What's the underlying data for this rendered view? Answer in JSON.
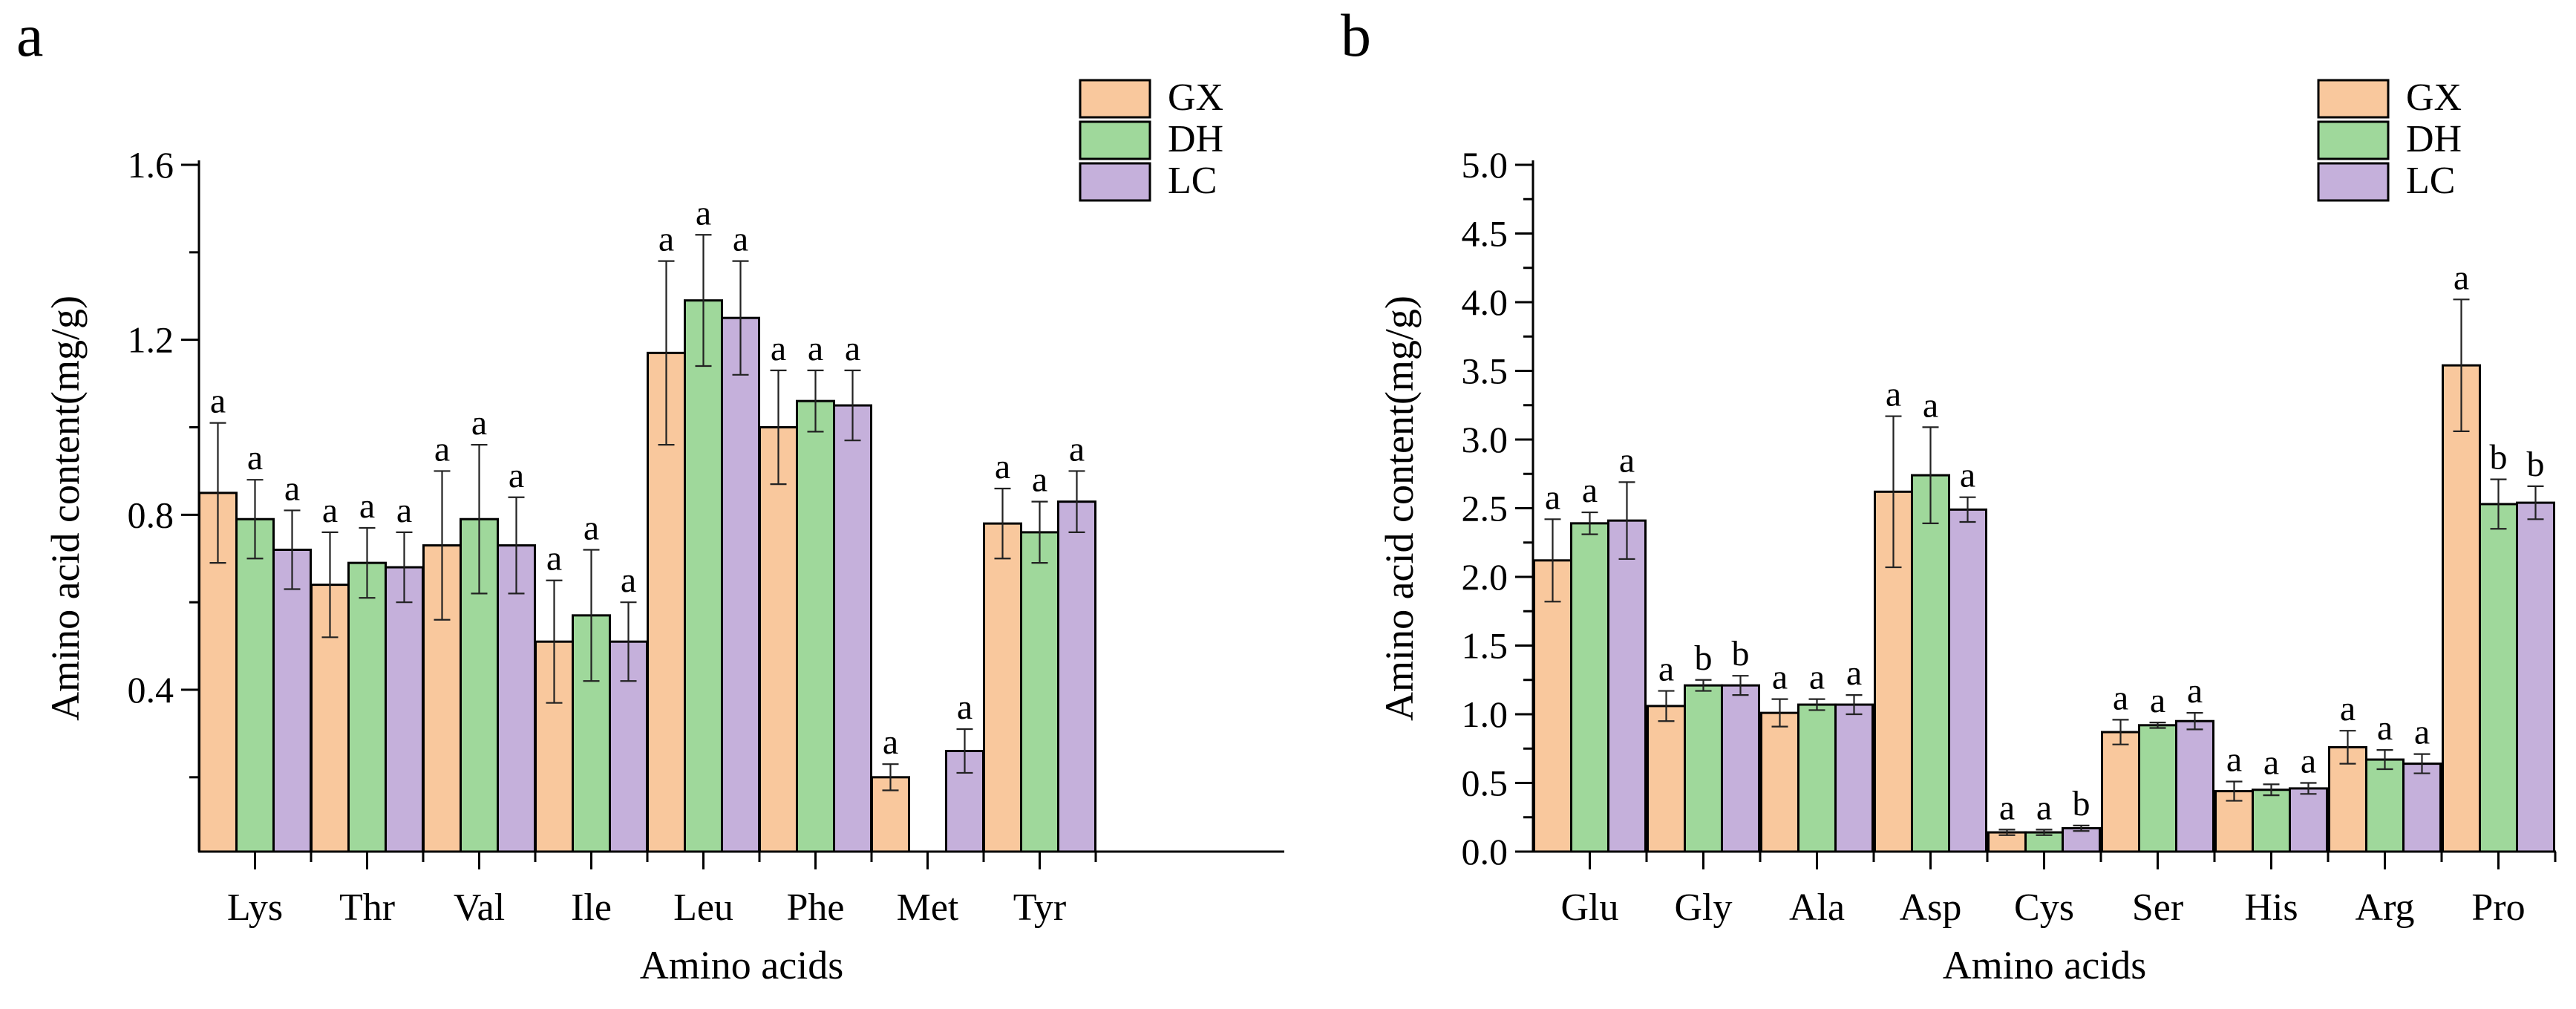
{
  "colors": {
    "GX": "#F9C89D",
    "DH": "#9FD89B",
    "LC": "#C5B0DB"
  },
  "chart_data": [
    {
      "panel_label": "a",
      "type": "bar",
      "xlabel": "Amino acids",
      "ylabel": "Amino acid content(mg/g)",
      "ylim": [
        0.03,
        1.6
      ],
      "yticks": [
        {
          "value": 0.4,
          "label": "0.4"
        },
        {
          "value": 0.8,
          "label": "0.8"
        },
        {
          "value": 1.2,
          "label": "1.2"
        },
        {
          "value": 1.6,
          "label": "1.6"
        }
      ],
      "categories": [
        "Lys",
        "Thr",
        "Val",
        "Ile",
        "Leu",
        "Phe",
        "Met",
        "Tyr"
      ],
      "series": [
        {
          "name": "GX",
          "values": [
            0.85,
            0.64,
            0.73,
            0.51,
            1.17,
            1.0,
            0.2,
            0.78
          ],
          "errors": [
            0.16,
            0.12,
            0.17,
            0.14,
            0.21,
            0.13,
            0.03,
            0.08
          ],
          "letters": [
            "a",
            "a",
            "a",
            "a",
            "a",
            "a",
            "a",
            "a"
          ]
        },
        {
          "name": "DH",
          "values": [
            0.79,
            0.69,
            0.79,
            0.57,
            1.29,
            1.06,
            null,
            0.76
          ],
          "errors": [
            0.09,
            0.08,
            0.17,
            0.15,
            0.15,
            0.07,
            null,
            0.07
          ],
          "letters": [
            "a",
            "a",
            "a",
            "a",
            "a",
            "a",
            "",
            "a"
          ]
        },
        {
          "name": "LC",
          "values": [
            0.72,
            0.68,
            0.73,
            0.51,
            1.25,
            1.05,
            0.26,
            0.83
          ],
          "errors": [
            0.09,
            0.08,
            0.11,
            0.09,
            0.13,
            0.08,
            0.05,
            0.07
          ],
          "letters": [
            "a",
            "a",
            "a",
            "a",
            "a",
            "a",
            "a",
            "a"
          ]
        }
      ],
      "legend": [
        "GX",
        "DH",
        "LC"
      ],
      "legend_position": "top-right"
    },
    {
      "panel_label": "b",
      "type": "bar",
      "xlabel": "Amino acids",
      "ylabel": "Amino acid content(mg/g)",
      "ylim": [
        0.0,
        5.0
      ],
      "yticks": [
        {
          "value": 0.0,
          "label": "0.0"
        },
        {
          "value": 0.5,
          "label": "0.5"
        },
        {
          "value": 1.0,
          "label": "1.0"
        },
        {
          "value": 1.5,
          "label": "1.5"
        },
        {
          "value": 2.0,
          "label": "2.0"
        },
        {
          "value": 2.5,
          "label": "2.5"
        },
        {
          "value": 3.0,
          "label": "3.0"
        },
        {
          "value": 3.5,
          "label": "3.5"
        },
        {
          "value": 4.0,
          "label": "4.0"
        },
        {
          "value": 4.5,
          "label": "4.5"
        },
        {
          "value": 5.0,
          "label": "5.0"
        }
      ],
      "categories": [
        "Glu",
        "Gly",
        "Ala",
        "Asp",
        "Cys",
        "Ser",
        "His",
        "Arg",
        "Pro"
      ],
      "series": [
        {
          "name": "GX",
          "values": [
            2.12,
            1.06,
            1.01,
            2.62,
            0.14,
            0.87,
            0.44,
            0.76,
            3.54
          ],
          "errors": [
            0.3,
            0.11,
            0.1,
            0.55,
            0.02,
            0.09,
            0.07,
            0.12,
            0.48
          ],
          "letters": [
            "a",
            "a",
            "a",
            "a",
            "a",
            "a",
            "a",
            "a",
            "a"
          ]
        },
        {
          "name": "DH",
          "values": [
            2.39,
            1.21,
            1.07,
            2.74,
            0.14,
            0.92,
            0.45,
            0.67,
            2.53
          ],
          "errors": [
            0.08,
            0.04,
            0.04,
            0.35,
            0.02,
            0.02,
            0.04,
            0.07,
            0.18
          ],
          "letters": [
            "a",
            "b",
            "a",
            "a",
            "a",
            "a",
            "a",
            "a",
            "b"
          ]
        },
        {
          "name": "LC",
          "values": [
            2.41,
            1.21,
            1.07,
            2.49,
            0.17,
            0.95,
            0.46,
            0.64,
            2.54
          ],
          "errors": [
            0.28,
            0.07,
            0.07,
            0.09,
            0.02,
            0.06,
            0.04,
            0.07,
            0.12
          ],
          "letters": [
            "a",
            "b",
            "a",
            "a",
            "b",
            "a",
            "a",
            "a",
            "b"
          ]
        }
      ],
      "legend": [
        "GX",
        "DH",
        "LC"
      ],
      "legend_position": "top-right"
    }
  ]
}
